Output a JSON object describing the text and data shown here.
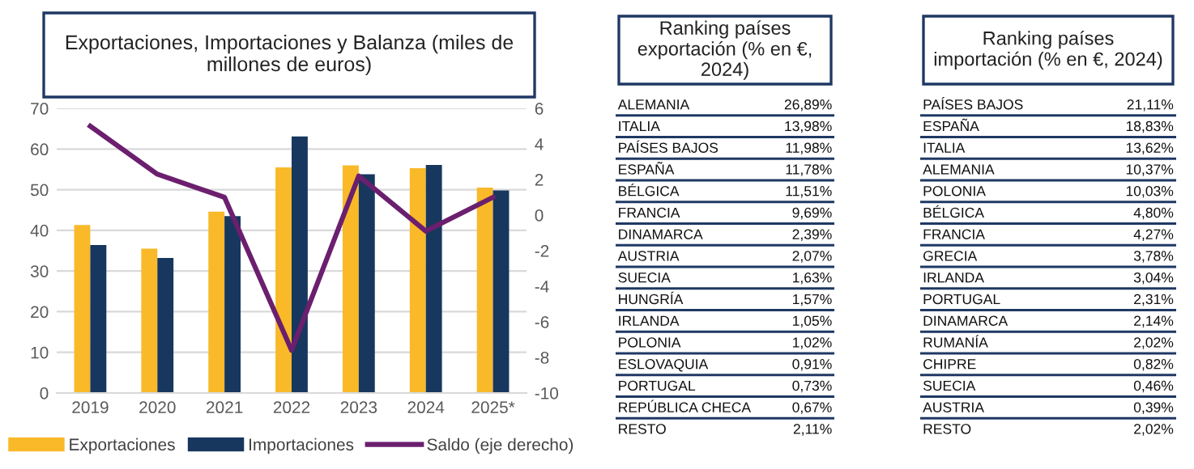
{
  "chart_data": [
    {
      "type": "bar",
      "title": "Exportaciones, Importaciones y Balanza (miles de millones de euros)",
      "categories": [
        "2019",
        "2020",
        "2021",
        "2022",
        "2023",
        "2024",
        "2025*"
      ],
      "series": [
        {
          "name": "Exportaciones",
          "color": "#f9b928",
          "values": [
            41.3,
            35.5,
            44.6,
            55.5,
            56.0,
            55.3,
            50.5
          ]
        },
        {
          "name": "Importaciones",
          "color": "#17375e",
          "values": [
            36.4,
            33.2,
            43.5,
            63.1,
            53.8,
            56.1,
            49.8
          ]
        },
        {
          "name": "Saldo (eje derecho)",
          "type": "line",
          "axis": "y2",
          "color": "#6b1f6e",
          "values": [
            5.0,
            2.3,
            1.0,
            -7.6,
            2.2,
            -0.9,
            1.0
          ]
        }
      ],
      "ylim": [
        0,
        70
      ],
      "yticks": [
        0,
        10,
        20,
        30,
        40,
        50,
        60,
        70
      ],
      "y2lim": [
        -10,
        6
      ],
      "y2ticks": [
        -10,
        -8,
        -6,
        -4,
        -2,
        0,
        2,
        4,
        6
      ],
      "grid": "y",
      "legend": "bottom",
      "marker": "none"
    },
    {
      "type": "other",
      "title": "Ranking países exportación (% en €, 2024)",
      "categories": [
        "ALEMANIA",
        "ITALIA",
        "PAÍSES BAJOS",
        "ESPAÑA",
        "BÉLGICA",
        "FRANCIA",
        "DINAMARCA",
        "AUSTRIA",
        "SUECIA",
        "HUNGRÍA",
        "IRLANDA",
        "POLONIA",
        "ESLOVAQUIA",
        "PORTUGAL",
        "REPÚBLICA CHECA",
        "RESTO"
      ],
      "value_labels": [
        "26,89%",
        "13,98%",
        "11,98%",
        "11,78%",
        "11,51%",
        "9,69%",
        "2,39%",
        "2,07%",
        "1,63%",
        "1,57%",
        "1,05%",
        "1,02%",
        "0,91%",
        "0,73%",
        "0,67%",
        "2,11%"
      ]
    },
    {
      "type": "other",
      "title": "Ranking países importación (% en €, 2024)",
      "categories": [
        "PAÍSES BAJOS",
        "ESPAÑA",
        "ITALIA",
        "ALEMANIA",
        "POLONIA",
        "BÉLGICA",
        "FRANCIA",
        "GRECIA",
        "IRLANDA",
        "PORTUGAL",
        "DINAMARCA",
        "RUMANÍA",
        "CHIPRE",
        "SUECIA",
        "AUSTRIA",
        "RESTO"
      ],
      "value_labels": [
        "21,11%",
        "18,83%",
        "13,62%",
        "10,37%",
        "10,03%",
        "4,80%",
        "4,27%",
        "3,78%",
        "3,04%",
        "2,31%",
        "2,14%",
        "2,02%",
        "0,82%",
        "0,46%",
        "0,39%",
        "2,02%"
      ]
    }
  ]
}
